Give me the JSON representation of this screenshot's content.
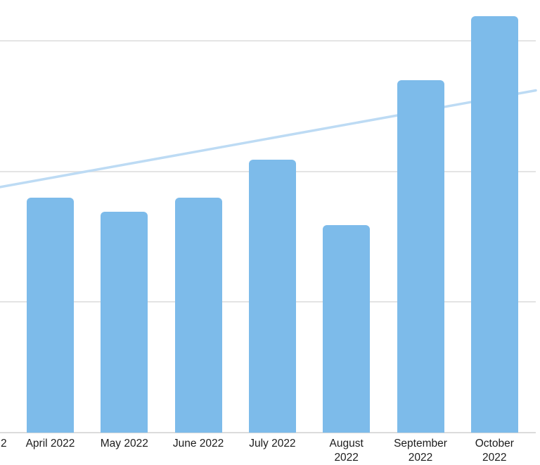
{
  "chart_style": {
    "background": "#ffffff",
    "bar_color": "#7DBBEA",
    "trend_line_color": "#BDDBF4",
    "gridline_color": "#E4E4E4",
    "axis_line_color": "#DBDBDB",
    "tick_label_color": "#1C1C1C"
  },
  "chart_data": {
    "type": "bar",
    "title": "",
    "xlabel": "",
    "ylabel": "",
    "categories": [
      "April 2022",
      "May 2022",
      "June 2022",
      "July 2022",
      "August 2022",
      "September 2022",
      "October 2022"
    ],
    "values": [
      180,
      169,
      180,
      209,
      159,
      270,
      319
    ],
    "tick_labels_as_displayed": [
      "April 2022",
      "May 2022",
      "June 2022",
      "July 2022",
      "August\n2022",
      "September\n2022",
      "October\n2022"
    ],
    "partial_tick_label_at_left_edge": "2",
    "value_units": "relative units: horizontal gridline spacing = 100 (y-axis tick labels are cropped outside the visible area)",
    "ylim": [
      0,
      331
    ],
    "gridlines": {
      "visible": true,
      "values_at": [
        100,
        200,
        300
      ]
    },
    "legend": {
      "visible": false
    },
    "trend_line": {
      "shape": "straight",
      "drawn_behind_bars": true,
      "value_at_left_edge": 188,
      "value_at_right_edge": 262
    }
  }
}
